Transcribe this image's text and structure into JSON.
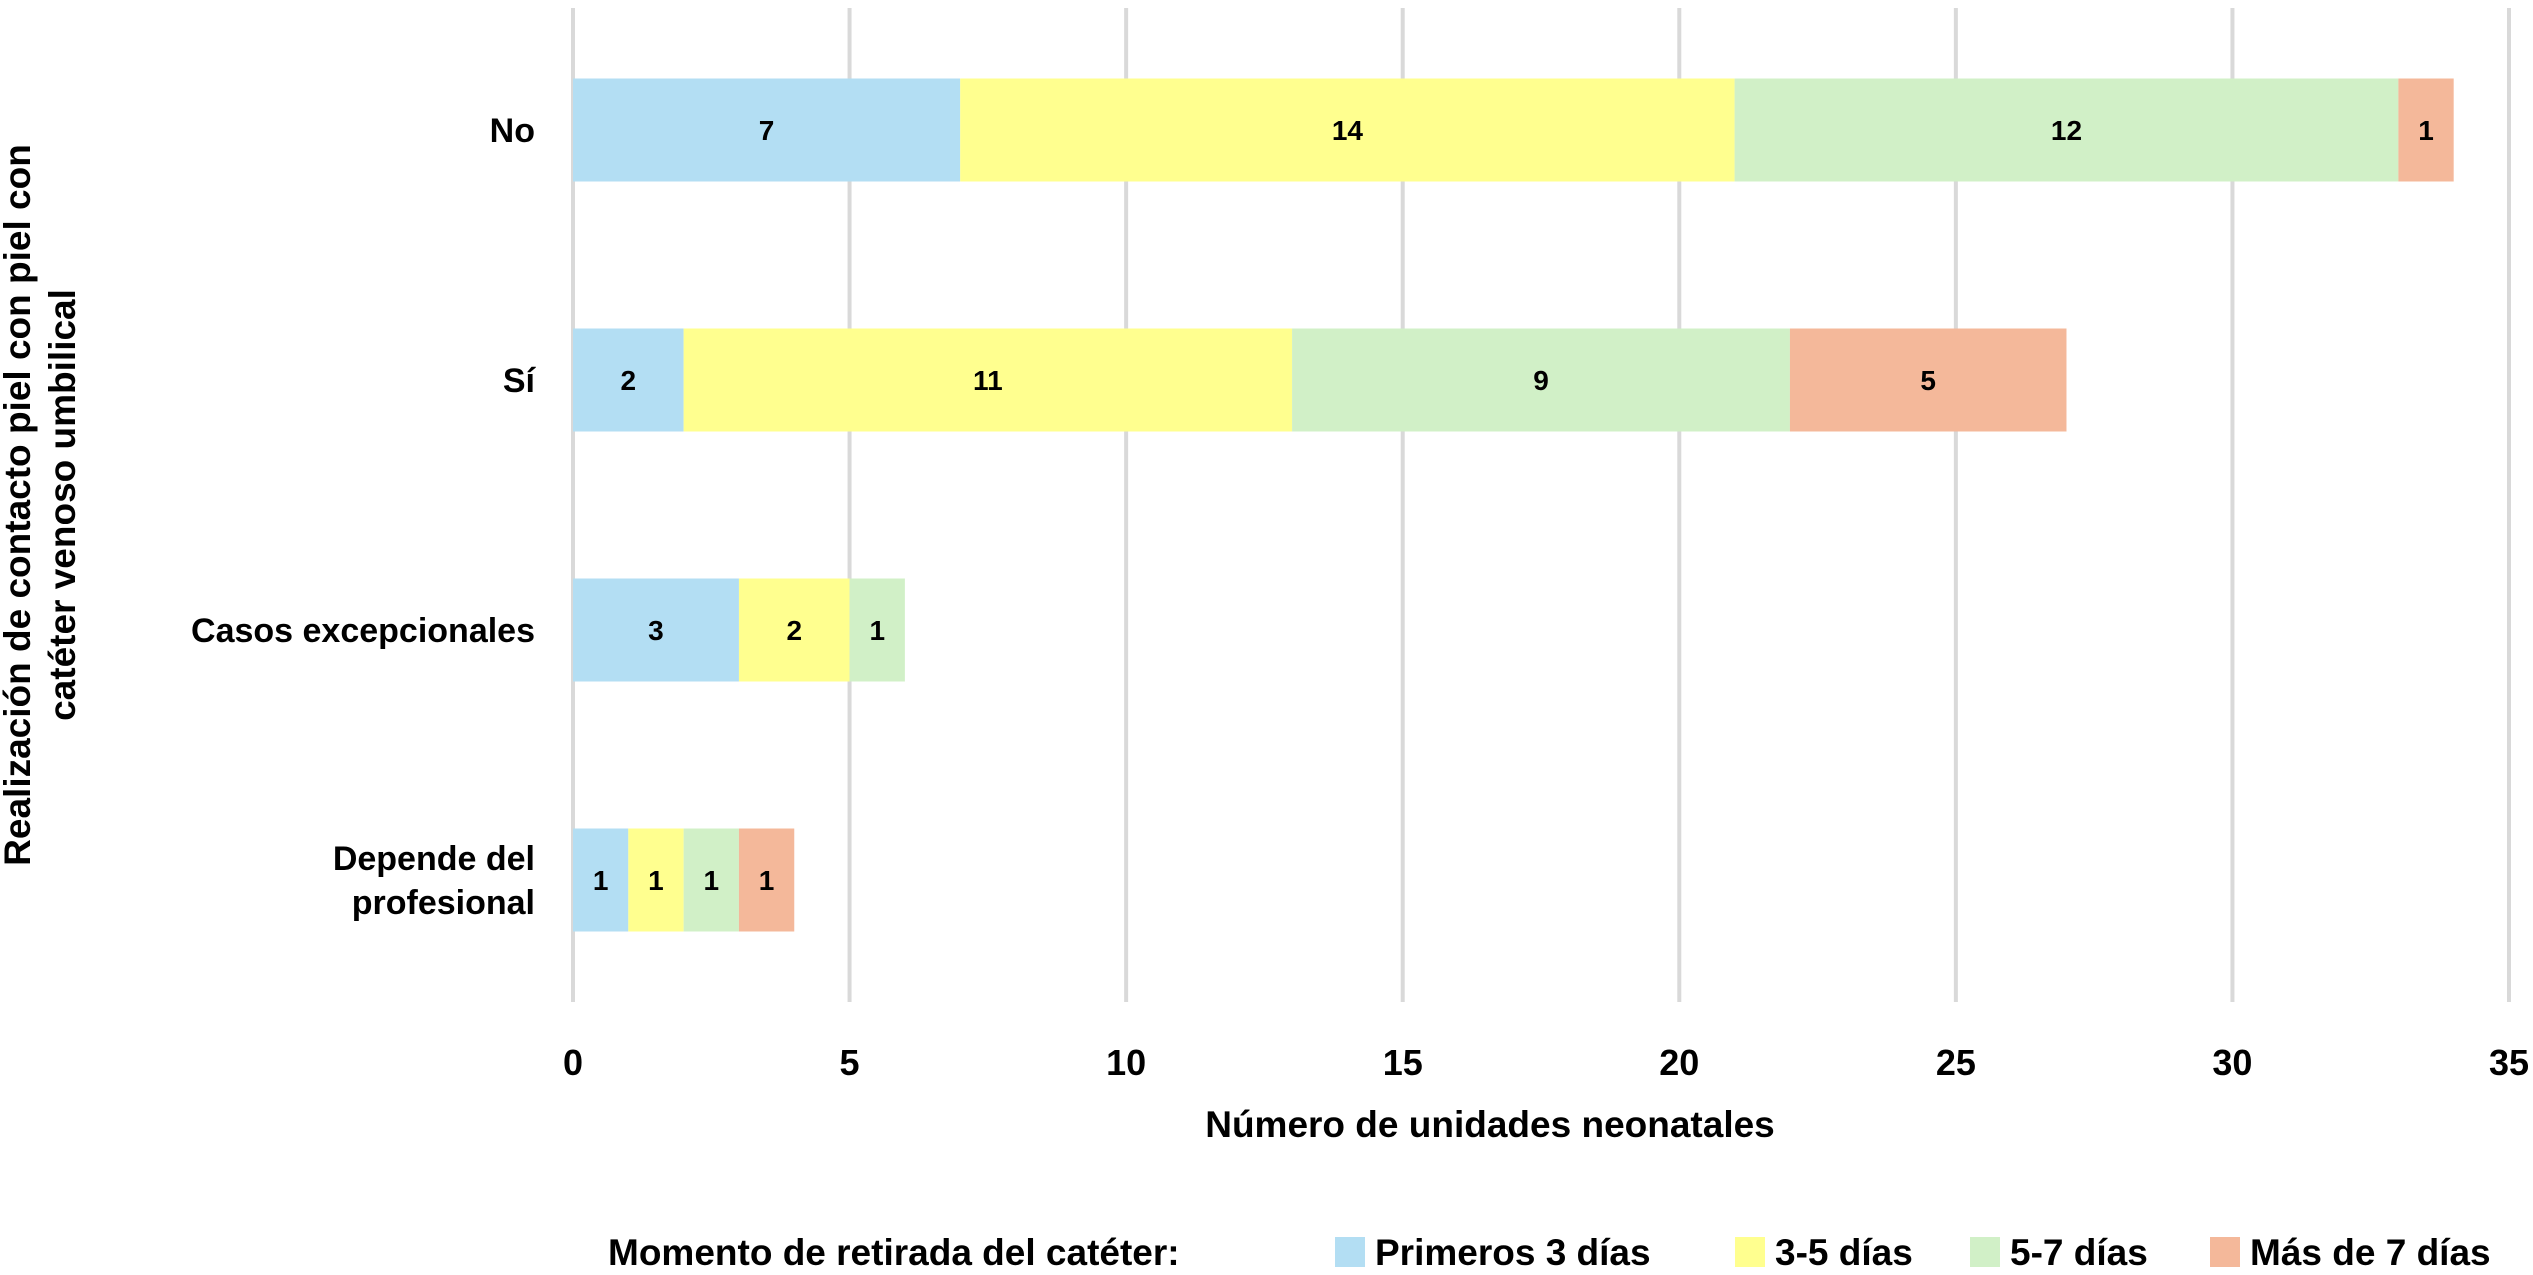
{
  "chart_data": {
    "type": "bar",
    "orientation": "horizontal",
    "stacked": true,
    "categories": [
      "No",
      "Sí",
      "Casos excepcionales",
      "Depende del profesional"
    ],
    "category_lines": [
      [
        "No"
      ],
      [
        "Sí"
      ],
      [
        "Casos excepcionales"
      ],
      [
        "Depende del",
        "profesional"
      ]
    ],
    "series": [
      {
        "name": "Primeros 3 días",
        "color": "#b3def3",
        "values": [
          7,
          2,
          3,
          1
        ]
      },
      {
        "name": "3-5 días",
        "color": "#ffff8f",
        "values": [
          14,
          11,
          2,
          1
        ]
      },
      {
        "name": "5-7 días",
        "color": "#d1f0c7",
        "values": [
          12,
          9,
          1,
          1
        ]
      },
      {
        "name": "Más de 7 días",
        "color": "#f4b89a",
        "values": [
          1,
          5,
          0,
          1
        ]
      }
    ],
    "xlabel": "Número de unidades neonatales",
    "ylabel_lines": [
      "Realización de contacto piel con piel con",
      "catéter venoso umbilical"
    ],
    "xlim": [
      0,
      35
    ],
    "xticks": [
      0,
      5,
      10,
      15,
      20,
      25,
      30,
      35
    ],
    "grid": "vertical",
    "legend_title": "Momento de retirada del catéter:",
    "legend_position": "bottom"
  }
}
